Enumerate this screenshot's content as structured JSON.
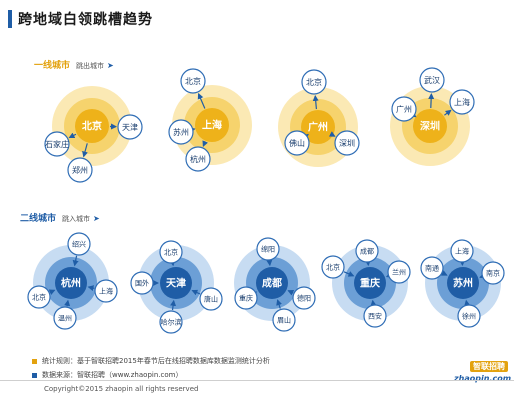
{
  "title": "跨地域白领跳槽趋势",
  "tier1": {
    "label": "一线城市",
    "legend": "跳出城市"
  },
  "tier2": {
    "label": "二线城市",
    "legend": "跳入城市"
  },
  "colors": {
    "gold_outer": "#fbe9b4",
    "gold_mid": "#f6d36d",
    "gold_core": "#eeb21a",
    "blue_outer": "#c7dcf2",
    "blue_mid": "#6c9fd6",
    "blue_core": "#1f5da6",
    "node_border": "#2f6db5",
    "node_fill": "#ffffff",
    "arrow": "#1f5da6"
  },
  "tier1_clusters": [
    {
      "center": "北京",
      "nodes": [
        "天津",
        "郑州",
        "石家庄"
      ]
    },
    {
      "center": "上海",
      "nodes": [
        "北京",
        "苏州",
        "杭州"
      ]
    },
    {
      "center": "广州",
      "nodes": [
        "北京",
        "佛山",
        "深圳"
      ]
    },
    {
      "center": "深圳",
      "nodes": [
        "武汉",
        "广州",
        "上海"
      ]
    }
  ],
  "tier2_clusters": [
    {
      "center": "杭州",
      "nodes": [
        "绍兴",
        "北京",
        "上海",
        "温州"
      ]
    },
    {
      "center": "天津",
      "nodes": [
        "北京",
        "国外",
        "唐山",
        "哈尔滨"
      ]
    },
    {
      "center": "成都",
      "nodes": [
        "绵阳",
        "重庆",
        "德阳",
        "眉山"
      ]
    },
    {
      "center": "重庆",
      "nodes": [
        "成都",
        "北京",
        "兰州",
        "西安"
      ]
    },
    {
      "center": "苏州",
      "nodes": [
        "上海",
        "南通",
        "南京",
        "徐州"
      ]
    }
  ],
  "notes": {
    "stats": "统计规则：基于智联招聘2015年春节后在线招聘数据库数据监测统计分析",
    "source": "数据来源：智联招聘（www.zhaopin.com）"
  },
  "copyright": "Copyright©2015 zhaopin all rights reserved",
  "logo": {
    "cn": "智联招聘",
    "en": "zhaopin.com"
  }
}
